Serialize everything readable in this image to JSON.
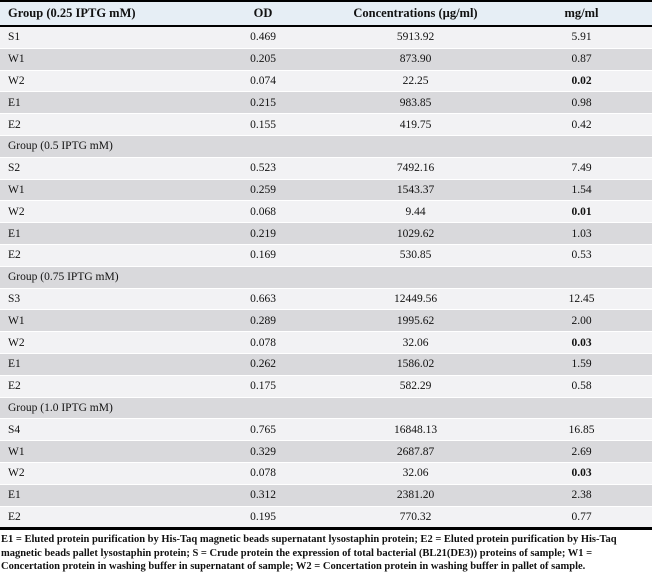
{
  "header": {
    "group": "Group (0.25 IPTG mM)",
    "od": "OD",
    "concentrations": "Concentrations (µg/ml)",
    "mgml": "mg/ml"
  },
  "groups": [
    {
      "label": "",
      "rows": [
        {
          "sample": "S1",
          "od": "0.469",
          "conc": "5913.92",
          "mgml": "5.91",
          "bold_mgml": false
        },
        {
          "sample": "W1",
          "od": "0.205",
          "conc": "873.90",
          "mgml": "0.87",
          "bold_mgml": false
        },
        {
          "sample": "W2",
          "od": "0.074",
          "conc": "22.25",
          "mgml": "0.02",
          "bold_mgml": true
        },
        {
          "sample": "E1",
          "od": "0.215",
          "conc": "983.85",
          "mgml": "0.98",
          "bold_mgml": false
        },
        {
          "sample": "E2",
          "od": "0.155",
          "conc": "419.75",
          "mgml": "0.42",
          "bold_mgml": false
        }
      ]
    },
    {
      "label": "Group (0.5 IPTG mM)",
      "rows": [
        {
          "sample": "S2",
          "od": "0.523",
          "conc": "7492.16",
          "mgml": "7.49",
          "bold_mgml": false
        },
        {
          "sample": "W1",
          "od": "0.259",
          "conc": "1543.37",
          "mgml": "1.54",
          "bold_mgml": false
        },
        {
          "sample": "W2",
          "od": "0.068",
          "conc": "9.44",
          "mgml": "0.01",
          "bold_mgml": true
        },
        {
          "sample": "E1",
          "od": "0.219",
          "conc": "1029.62",
          "mgml": "1.03",
          "bold_mgml": false
        },
        {
          "sample": "E2",
          "od": "0.169",
          "conc": "530.85",
          "mgml": "0.53",
          "bold_mgml": false
        }
      ]
    },
    {
      "label": "Group (0.75 IPTG mM)",
      "rows": [
        {
          "sample": "S3",
          "od": "0.663",
          "conc": "12449.56",
          "mgml": "12.45",
          "bold_mgml": false
        },
        {
          "sample": "W1",
          "od": "0.289",
          "conc": "1995.62",
          "mgml": "2.00",
          "bold_mgml": false
        },
        {
          "sample": "W2",
          "od": "0.078",
          "conc": "32.06",
          "mgml": "0.03",
          "bold_mgml": true
        },
        {
          "sample": "E1",
          "od": "0.262",
          "conc": "1586.02",
          "mgml": "1.59",
          "bold_mgml": false
        },
        {
          "sample": "E2",
          "od": "0.175",
          "conc": "582.29",
          "mgml": "0.58",
          "bold_mgml": false
        }
      ]
    },
    {
      "label": "Group (1.0 IPTG mM)",
      "rows": [
        {
          "sample": "S4",
          "od": "0.765",
          "conc": "16848.13",
          "mgml": "16.85",
          "bold_mgml": false
        },
        {
          "sample": "W1",
          "od": "0.329",
          "conc": "2687.87",
          "mgml": "2.69",
          "bold_mgml": false
        },
        {
          "sample": "W2",
          "od": "0.078",
          "conc": "32.06",
          "mgml": "0.03",
          "bold_mgml": true
        },
        {
          "sample": "E1",
          "od": "0.312",
          "conc": "2381.20",
          "mgml": "2.38",
          "bold_mgml": false
        },
        {
          "sample": "E2",
          "od": "0.195",
          "conc": "770.32",
          "mgml": "0.77",
          "bold_mgml": false
        }
      ]
    }
  ],
  "footnote": "E1 = Eluted protein purification by His-Taq magnetic beads supernatant lysostaphin protein; E2 = Eluted protein purification by His-Taq magnetic beads pallet lysostaphin protein; S = Crude protein the expression of total bacterial (BL21(DE3)) proteins of sample; W1 = Concertation protein in washing buffer in supernatant of sample; W2 = Concertation protein in washing buffer in pallet of sample.",
  "colors": {
    "header_bg": "#e6eef5",
    "row_light": "#f2f2f4",
    "row_dark": "#d9d9dc",
    "border": "#000000"
  }
}
